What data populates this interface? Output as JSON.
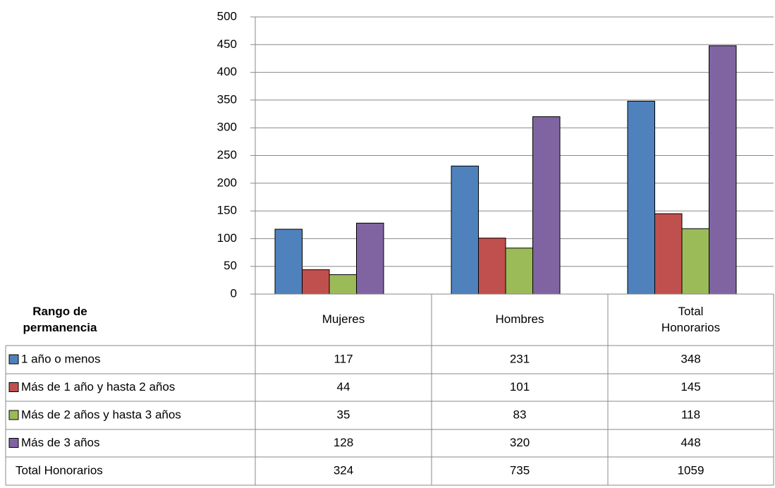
{
  "chart_data": {
    "type": "bar",
    "categories": [
      "Mujeres",
      "Hombres",
      "Total Honorarios"
    ],
    "series": [
      {
        "name": "1 año o menos",
        "color": "#4f81bd",
        "values": [
          117,
          231,
          348
        ]
      },
      {
        "name": "Más de 1 año y hasta 2 años",
        "color": "#c0504d",
        "values": [
          44,
          101,
          145
        ]
      },
      {
        "name": "Más de 2 años y hasta 3 años",
        "color": "#9bbb59",
        "values": [
          35,
          83,
          118
        ]
      },
      {
        "name": "Más de 3 años",
        "color": "#8064a2",
        "values": [
          128,
          320,
          448
        ]
      }
    ],
    "ylim": [
      0,
      500
    ],
    "yticks": [
      0,
      50,
      100,
      150,
      200,
      250,
      300,
      350,
      400,
      450,
      500
    ],
    "grid": true,
    "table_header": "Rango de permanencia",
    "totals": {
      "name": "Total Honorarios",
      "values": [
        324,
        735,
        1059
      ]
    }
  }
}
